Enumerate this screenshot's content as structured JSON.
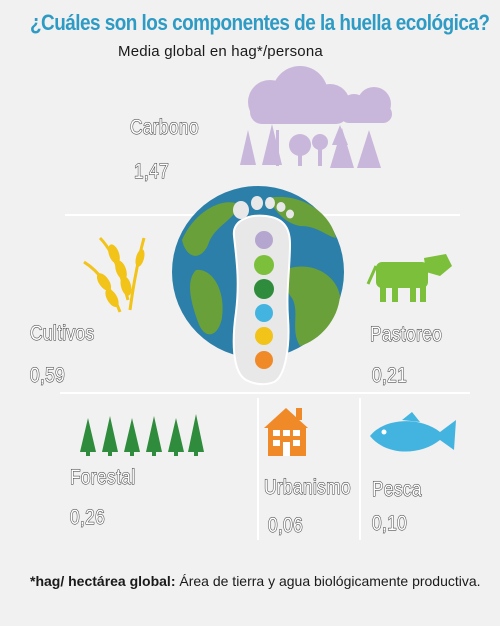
{
  "header": {
    "title": "¿Cuáles son los componentes de la huella  ecológica?",
    "subtitle": "Media global en hag*/persona"
  },
  "components": {
    "carbono": {
      "label": "Carbono",
      "value": "1,47"
    },
    "cultivos": {
      "label": "Cultivos",
      "value": "0,59"
    },
    "pastoreo": {
      "label": "Pastoreo",
      "value": "0,21"
    },
    "forestal": {
      "label": "Forestal",
      "value": "0,26"
    },
    "urbanismo": {
      "label": "Urbanismo",
      "value": "0,06"
    },
    "pesca": {
      "label": "Pesca",
      "value": "0,10"
    }
  },
  "footnote": {
    "term": "*hag/ hectárea global:",
    "definition": " Área de tierra y agua biológicamente productiva."
  },
  "colors": {
    "title": "#2e9bc4",
    "ocean": "#2b7fa8",
    "land": "#6aa03a",
    "cloud": "#c9b7db",
    "wheat": "#f2c318",
    "cow": "#7bbf3a",
    "tree": "#2f8c3c",
    "house": "#f08a28",
    "fish": "#43b4e0"
  },
  "icons": [
    "cloud-rain-trees-icon",
    "globe-icon",
    "footprint-icon",
    "wheat-icon",
    "cow-icon",
    "pine-trees-icon",
    "house-icon",
    "fish-icon"
  ]
}
